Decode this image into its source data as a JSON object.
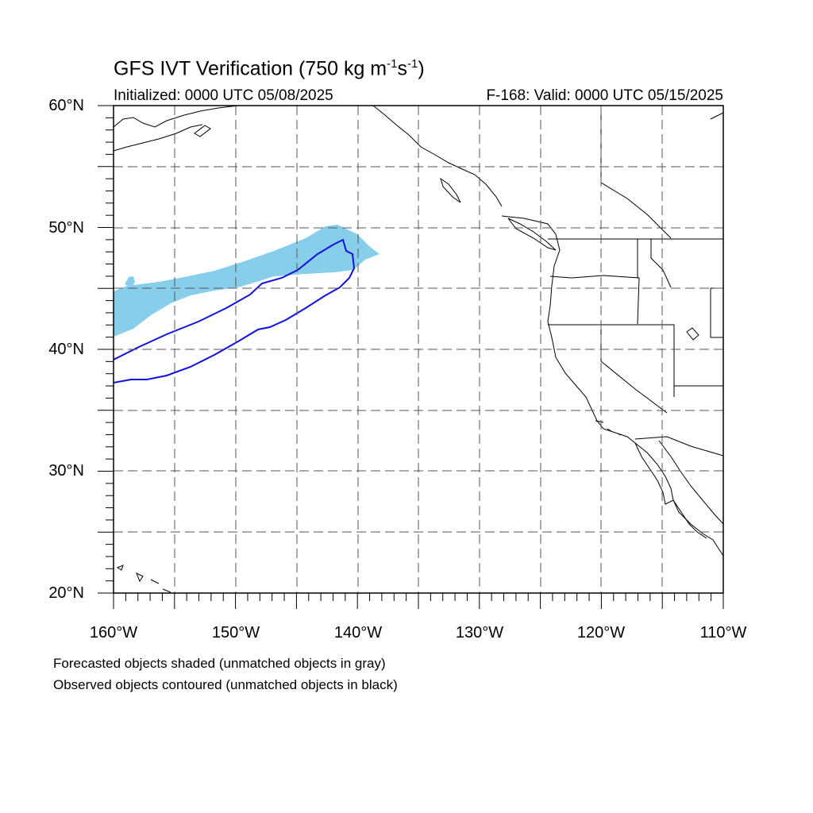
{
  "title": {
    "prefix": "GFS IVT Verification (750 kg m",
    "exp1": "-1",
    "mid": "s",
    "exp2": "-1",
    "suffix": ")"
  },
  "subtitle_left": "Initialized: 0000 UTC 05/08/2025",
  "subtitle_right": "F-168: Valid: 0000 UTC 05/15/2025",
  "map": {
    "projection": "cylindrical equidistant",
    "lon_range": [
      -160,
      -110
    ],
    "lat_range": [
      20,
      60
    ],
    "lat_ticks": [
      {
        "value": 60,
        "label": "60°N"
      },
      {
        "value": 50,
        "label": "50°N"
      },
      {
        "value": 40,
        "label": "40°N"
      },
      {
        "value": 30,
        "label": "30°N"
      },
      {
        "value": 20,
        "label": "20°N"
      }
    ],
    "lon_ticks": [
      {
        "value": -160,
        "label": "160°W"
      },
      {
        "value": -150,
        "label": "150°W"
      },
      {
        "value": -140,
        "label": "140°W"
      },
      {
        "value": -130,
        "label": "130°W"
      },
      {
        "value": -120,
        "label": "120°W"
      },
      {
        "value": -110,
        "label": "110°W"
      }
    ],
    "grid": "dashed every 5 degrees",
    "forecast_color": "#87ceeb",
    "observed_color": "#1010e0",
    "coast_color": "#000000"
  },
  "footnote_1": "Forecasted objects shaded (unmatched objects in gray)",
  "footnote_2": "Observed objects contoured (unmatched objects in black)"
}
